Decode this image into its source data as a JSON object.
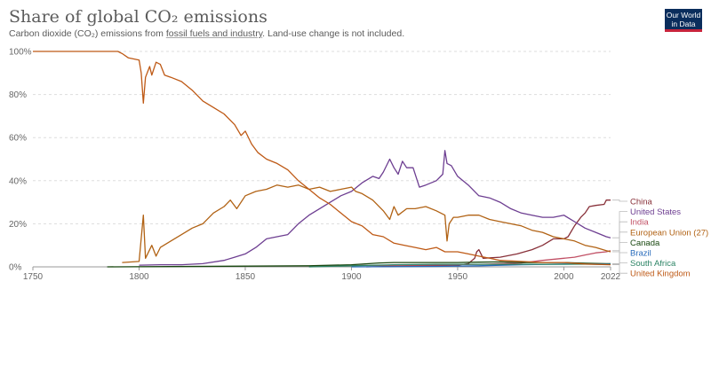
{
  "header": {
    "title": "Share of global CO₂ emissions",
    "subtitle_pre": "Carbon dioxide (CO₂) emissions from ",
    "subtitle_link": "fossil fuels and industry",
    "subtitle_post": ". Land-use change is not included.",
    "logo_line1": "Our World",
    "logo_line2": "in Data"
  },
  "chart_data": {
    "type": "line",
    "title": "Share of global CO₂ emissions",
    "xlabel": "",
    "ylabel": "",
    "xlim": [
      1750,
      2022
    ],
    "ylim": [
      0,
      100
    ],
    "x_ticks": [
      1750,
      1800,
      1850,
      1900,
      1950,
      2000,
      2022
    ],
    "y_ticks": [
      0,
      20,
      40,
      60,
      80,
      100
    ],
    "y_tick_labels": [
      "0%",
      "20%",
      "40%",
      "60%",
      "80%",
      "100%"
    ],
    "grid": true,
    "legend": "right (labels at line ends)",
    "series": [
      {
        "name": "China",
        "color": "#883039",
        "points": [
          [
            1907,
            0
          ],
          [
            1950,
            0.8
          ],
          [
            1955,
            1.5
          ],
          [
            1958,
            4
          ],
          [
            1959,
            7
          ],
          [
            1960,
            8
          ],
          [
            1962,
            4
          ],
          [
            1970,
            4.5
          ],
          [
            1978,
            6
          ],
          [
            1985,
            8
          ],
          [
            1990,
            10
          ],
          [
            1995,
            13
          ],
          [
            2000,
            13
          ],
          [
            2002,
            14
          ],
          [
            2005,
            19
          ],
          [
            2008,
            23
          ],
          [
            2010,
            25
          ],
          [
            2012,
            28
          ],
          [
            2015,
            28.5
          ],
          [
            2019,
            29
          ],
          [
            2020,
            31
          ],
          [
            2022,
            31
          ]
        ]
      },
      {
        "name": "United States",
        "color": "#6d3e91",
        "points": [
          [
            1800,
            0.8
          ],
          [
            1810,
            1
          ],
          [
            1820,
            1
          ],
          [
            1830,
            1.5
          ],
          [
            1840,
            3
          ],
          [
            1845,
            4.5
          ],
          [
            1850,
            6
          ],
          [
            1855,
            9
          ],
          [
            1860,
            13
          ],
          [
            1865,
            14
          ],
          [
            1870,
            15
          ],
          [
            1875,
            20
          ],
          [
            1880,
            24
          ],
          [
            1885,
            27
          ],
          [
            1890,
            30
          ],
          [
            1895,
            33
          ],
          [
            1900,
            35
          ],
          [
            1905,
            39
          ],
          [
            1910,
            42
          ],
          [
            1913,
            41
          ],
          [
            1915,
            44
          ],
          [
            1918,
            50
          ],
          [
            1920,
            46
          ],
          [
            1922,
            43
          ],
          [
            1924,
            49
          ],
          [
            1926,
            46
          ],
          [
            1929,
            46
          ],
          [
            1932,
            37
          ],
          [
            1935,
            38
          ],
          [
            1940,
            40
          ],
          [
            1943,
            43
          ],
          [
            1944,
            54
          ],
          [
            1945,
            48
          ],
          [
            1947,
            47
          ],
          [
            1950,
            42
          ],
          [
            1955,
            38
          ],
          [
            1960,
            33
          ],
          [
            1965,
            32
          ],
          [
            1970,
            30
          ],
          [
            1975,
            27
          ],
          [
            1980,
            25
          ],
          [
            1985,
            24
          ],
          [
            1990,
            23
          ],
          [
            1995,
            23
          ],
          [
            2000,
            24
          ],
          [
            2005,
            21
          ],
          [
            2010,
            18
          ],
          [
            2015,
            16
          ],
          [
            2020,
            14
          ],
          [
            2022,
            13.5
          ]
        ]
      },
      {
        "name": "India",
        "color": "#c15065",
        "points": [
          [
            1880,
            0.2
          ],
          [
            1900,
            0.6
          ],
          [
            1920,
            0.7
          ],
          [
            1945,
            1
          ],
          [
            1960,
            1.2
          ],
          [
            1980,
            1.8
          ],
          [
            1990,
            3
          ],
          [
            2000,
            4
          ],
          [
            2005,
            4.5
          ],
          [
            2010,
            5.5
          ],
          [
            2015,
            6.5
          ],
          [
            2020,
            7
          ],
          [
            2022,
            7.5
          ]
        ]
      },
      {
        "name": "European Union (27)",
        "color": "#b16214",
        "points": [
          [
            1792,
            2
          ],
          [
            1800,
            2.5
          ],
          [
            1802,
            24
          ],
          [
            1803,
            4
          ],
          [
            1806,
            10
          ],
          [
            1808,
            5
          ],
          [
            1810,
            9
          ],
          [
            1815,
            12
          ],
          [
            1820,
            15
          ],
          [
            1825,
            18
          ],
          [
            1830,
            20
          ],
          [
            1835,
            25
          ],
          [
            1840,
            28
          ],
          [
            1843,
            31
          ],
          [
            1846,
            27
          ],
          [
            1850,
            33
          ],
          [
            1855,
            35
          ],
          [
            1860,
            36
          ],
          [
            1865,
            38
          ],
          [
            1870,
            37
          ],
          [
            1875,
            38
          ],
          [
            1880,
            36
          ],
          [
            1885,
            37
          ],
          [
            1890,
            35
          ],
          [
            1895,
            36
          ],
          [
            1900,
            37
          ],
          [
            1902,
            35
          ],
          [
            1905,
            34
          ],
          [
            1910,
            31
          ],
          [
            1915,
            26
          ],
          [
            1918,
            22
          ],
          [
            1920,
            28
          ],
          [
            1922,
            24
          ],
          [
            1926,
            27
          ],
          [
            1930,
            27
          ],
          [
            1935,
            28
          ],
          [
            1940,
            26
          ],
          [
            1944,
            24
          ],
          [
            1945,
            12
          ],
          [
            1946,
            20
          ],
          [
            1948,
            23
          ],
          [
            1950,
            23
          ],
          [
            1955,
            24
          ],
          [
            1960,
            24
          ],
          [
            1965,
            22
          ],
          [
            1970,
            21
          ],
          [
            1975,
            20
          ],
          [
            1980,
            19
          ],
          [
            1985,
            17
          ],
          [
            1990,
            16
          ],
          [
            1995,
            14
          ],
          [
            2000,
            13
          ],
          [
            2005,
            12
          ],
          [
            2010,
            10
          ],
          [
            2015,
            9
          ],
          [
            2020,
            7.5
          ],
          [
            2022,
            7
          ]
        ]
      },
      {
        "name": "Canada",
        "color": "#18470f",
        "points": [
          [
            1785,
            0
          ],
          [
            1880,
            0.5
          ],
          [
            1900,
            1
          ],
          [
            1913,
            1.8
          ],
          [
            1920,
            2
          ],
          [
            1930,
            2
          ],
          [
            1950,
            2
          ],
          [
            1960,
            2.2
          ],
          [
            1970,
            2.3
          ],
          [
            1980,
            2
          ],
          [
            1990,
            2
          ],
          [
            2000,
            2
          ],
          [
            2010,
            1.7
          ],
          [
            2020,
            1.5
          ],
          [
            2022,
            1.5
          ]
        ]
      },
      {
        "name": "Brazil",
        "color": "#286bbb",
        "points": [
          [
            1900,
            0
          ],
          [
            1940,
            0.2
          ],
          [
            1960,
            0.5
          ],
          [
            1980,
            1
          ],
          [
            2000,
            1.3
          ],
          [
            2010,
            1.3
          ],
          [
            2022,
            1.3
          ]
        ]
      },
      {
        "name": "South Africa",
        "color": "#2c8465",
        "points": [
          [
            1880,
            0
          ],
          [
            1900,
            0.5
          ],
          [
            1920,
            1
          ],
          [
            1940,
            1.2
          ],
          [
            1960,
            1.2
          ],
          [
            1980,
            1.2
          ],
          [
            2000,
            1.2
          ],
          [
            2010,
            1.3
          ],
          [
            2022,
            1.1
          ]
        ]
      },
      {
        "name": "United Kingdom",
        "color": "#be5915",
        "points": [
          [
            1750,
            100
          ],
          [
            1790,
            100
          ],
          [
            1792,
            99
          ],
          [
            1795,
            97
          ],
          [
            1800,
            96
          ],
          [
            1801,
            90
          ],
          [
            1802,
            76
          ],
          [
            1803,
            88
          ],
          [
            1805,
            93
          ],
          [
            1806,
            89
          ],
          [
            1808,
            95
          ],
          [
            1810,
            94
          ],
          [
            1812,
            89
          ],
          [
            1815,
            88
          ],
          [
            1820,
            86
          ],
          [
            1825,
            82
          ],
          [
            1830,
            77
          ],
          [
            1835,
            74
          ],
          [
            1840,
            71
          ],
          [
            1845,
            66
          ],
          [
            1848,
            61
          ],
          [
            1850,
            63
          ],
          [
            1853,
            57
          ],
          [
            1856,
            53
          ],
          [
            1860,
            50
          ],
          [
            1865,
            48
          ],
          [
            1870,
            45
          ],
          [
            1875,
            40
          ],
          [
            1880,
            36
          ],
          [
            1885,
            32
          ],
          [
            1890,
            29
          ],
          [
            1895,
            25
          ],
          [
            1900,
            21
          ],
          [
            1905,
            19
          ],
          [
            1910,
            15
          ],
          [
            1915,
            14
          ],
          [
            1920,
            11
          ],
          [
            1925,
            10
          ],
          [
            1930,
            9
          ],
          [
            1935,
            8
          ],
          [
            1940,
            9
          ],
          [
            1944,
            7
          ],
          [
            1950,
            7
          ],
          [
            1955,
            6
          ],
          [
            1960,
            5
          ],
          [
            1965,
            4
          ],
          [
            1970,
            3
          ],
          [
            1980,
            2.5
          ],
          [
            1990,
            2
          ],
          [
            2000,
            2
          ],
          [
            2010,
            1.3
          ],
          [
            2022,
            1
          ]
        ]
      }
    ]
  }
}
